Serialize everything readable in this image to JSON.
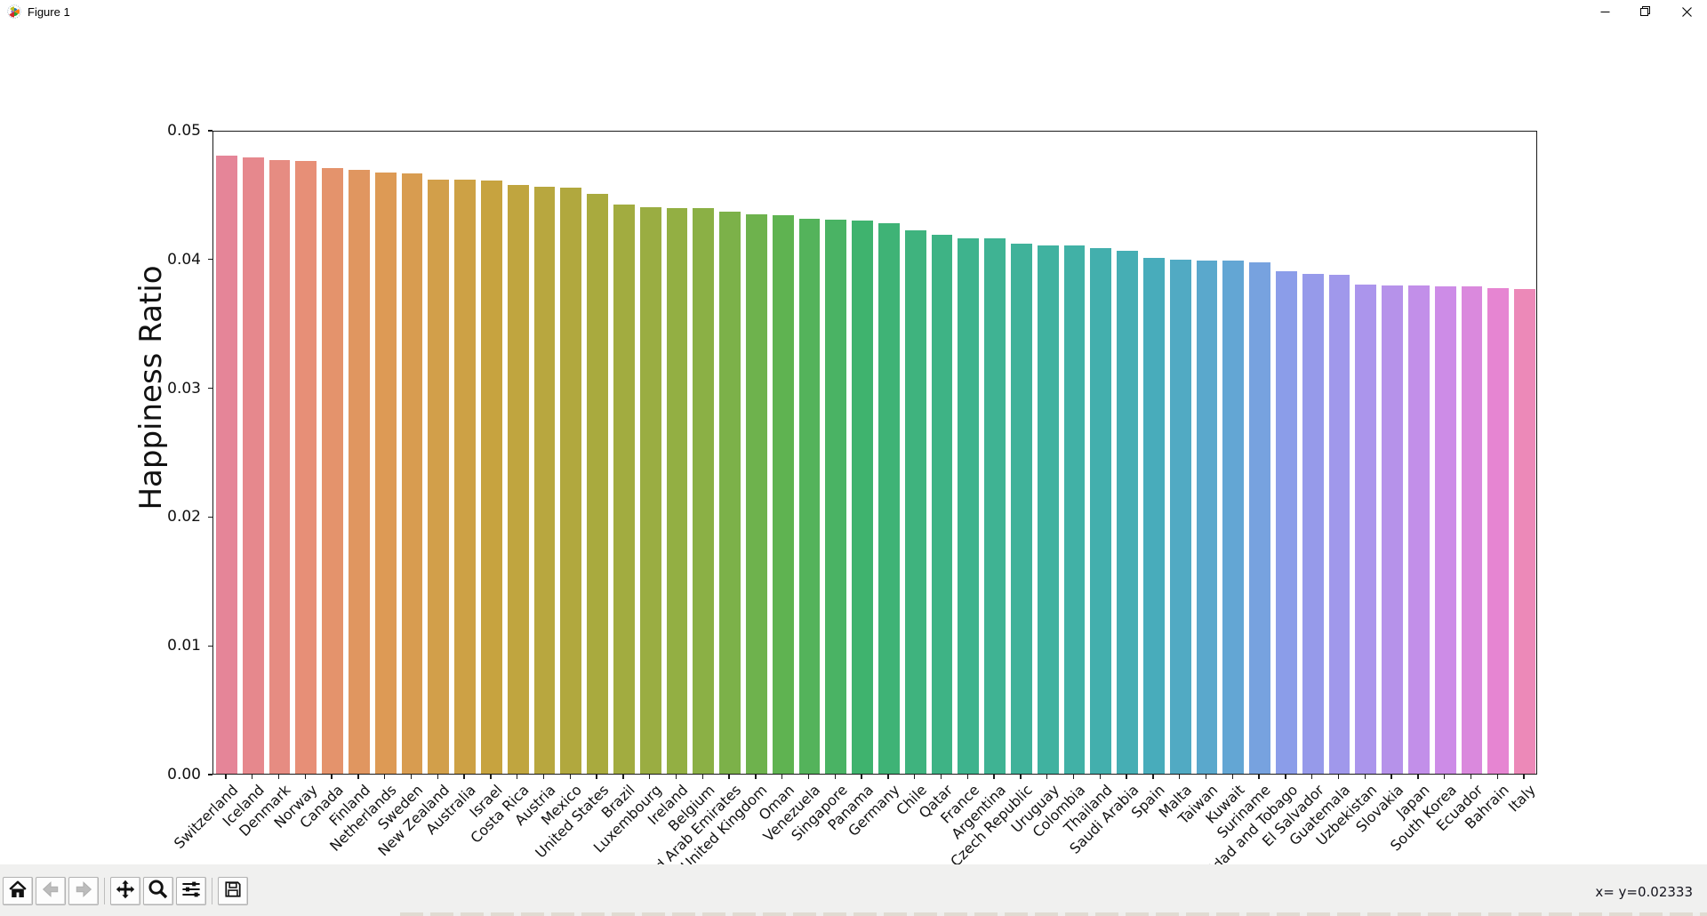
{
  "window": {
    "title": "Figure 1",
    "controls": {
      "minimize": "minimize",
      "maximize": "restore",
      "close": "close"
    }
  },
  "toolbar": {
    "groups": [
      [
        {
          "id": "home",
          "icon": "home-icon",
          "disabled": false
        },
        {
          "id": "back",
          "icon": "back-arrow-icon",
          "disabled": true
        },
        {
          "id": "forward",
          "icon": "forward-arrow-icon",
          "disabled": true
        }
      ],
      [
        {
          "id": "pan",
          "icon": "pan-arrows-icon",
          "disabled": false
        },
        {
          "id": "zoom",
          "icon": "zoom-magnifier-icon",
          "disabled": false
        },
        {
          "id": "configure-subplots",
          "icon": "sliders-icon",
          "disabled": false
        }
      ],
      [
        {
          "id": "save",
          "icon": "save-floppy-icon",
          "disabled": false
        }
      ]
    ],
    "status_text": "x= y=0.02333"
  },
  "chart_data": {
    "type": "bar",
    "title": "",
    "xlabel": "",
    "ylabel": "Happiness Ratio",
    "ylim": [
      0,
      0.05
    ],
    "ytick_labels": [
      "0.00",
      "0.01",
      "0.02",
      "0.03",
      "0.04",
      "0.05"
    ],
    "grid": false,
    "categories": [
      "Switzerland",
      "Iceland",
      "Denmark",
      "Norway",
      "Canada",
      "Finland",
      "Netherlands",
      "Sweden",
      "New Zealand",
      "Australia",
      "Israel",
      "Costa Rica",
      "Austria",
      "Mexico",
      "United States",
      "Brazil",
      "Luxembourg",
      "Ireland",
      "Belgium",
      "United Arab Emirates",
      "United Kingdom",
      "Oman",
      "Venezuela",
      "Singapore",
      "Panama",
      "Germany",
      "Chile",
      "Qatar",
      "France",
      "Argentina",
      "Czech Republic",
      "Uruguay",
      "Colombia",
      "Thailand",
      "Saudi Arabia",
      "Spain",
      "Malta",
      "Taiwan",
      "Kuwait",
      "Suriname",
      "Trinidad and Tobago",
      "El Salvador",
      "Guatemala",
      "Uzbekistan",
      "Slovakia",
      "Japan",
      "South Korea",
      "Ecuador",
      "Bahrain",
      "Italy"
    ],
    "values": [
      0.04802,
      0.04785,
      0.04764,
      0.04761,
      0.04701,
      0.04687,
      0.0467,
      0.04661,
      0.04611,
      0.0461,
      0.04606,
      0.04573,
      0.04557,
      0.04549,
      0.04506,
      0.04419,
      0.04396,
      0.04392,
      0.0439,
      0.04368,
      0.04346,
      0.04337,
      0.0431,
      0.04303,
      0.04295,
      0.04272,
      0.04222,
      0.04184,
      0.04161,
      0.04161,
      0.04117,
      0.04104,
      0.04099,
      0.04085,
      0.04058,
      0.04006,
      0.03989,
      0.03986,
      0.03984,
      0.03968,
      0.03904,
      0.0388,
      0.03875,
      0.03799,
      0.03794,
      0.03789,
      0.03787,
      0.03782,
      0.03772,
      0.03765
    ],
    "palette_stops": [
      [
        0,
        "#e58598"
      ],
      [
        3,
        "#e78f77"
      ],
      [
        6,
        "#dd9a55"
      ],
      [
        10,
        "#c7a33f"
      ],
      [
        14,
        "#a9aa3e"
      ],
      [
        18,
        "#8bb045"
      ],
      [
        21,
        "#5fb351"
      ],
      [
        24,
        "#3fb36e"
      ],
      [
        28,
        "#3eb38d"
      ],
      [
        32,
        "#41b1a6"
      ],
      [
        35,
        "#48acbb"
      ],
      [
        38,
        "#63a6d4"
      ],
      [
        40,
        "#8b9de9"
      ],
      [
        43,
        "#ab95ec"
      ],
      [
        46,
        "#cd8ce7"
      ],
      [
        48,
        "#e685d2"
      ],
      [
        49,
        "#ec89b8"
      ]
    ],
    "legend": null
  }
}
